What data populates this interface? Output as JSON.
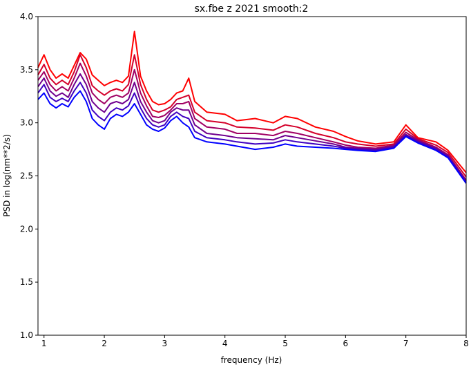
{
  "chart_data": {
    "type": "line",
    "title": "sx.fbe z 2021 smooth:2",
    "xlabel": "frequency (Hz)",
    "ylabel": "PSD in log(nm**2/s)",
    "xlim": [
      0.9,
      8.0
    ],
    "ylim": [
      1.0,
      4.0
    ],
    "xticks": [
      1,
      2,
      3,
      4,
      5,
      6,
      7,
      8
    ],
    "yticks": [
      1.0,
      1.5,
      2.0,
      2.5,
      3.0,
      3.5,
      4.0
    ],
    "xtick_labels": [
      "1",
      "2",
      "3",
      "4",
      "5",
      "6",
      "7",
      "8"
    ],
    "ytick_labels": [
      "1.0",
      "1.5",
      "2.0",
      "2.5",
      "3.0",
      "3.5",
      "4.0"
    ],
    "grid": false,
    "legend": "none",
    "series": [
      {
        "color": "#ff0000",
        "x": [
          0.9,
          1.0,
          1.1,
          1.2,
          1.3,
          1.4,
          1.5,
          1.6,
          1.7,
          1.8,
          1.9,
          2.0,
          2.1,
          2.2,
          2.3,
          2.4,
          2.5,
          2.6,
          2.7,
          2.8,
          2.9,
          3.0,
          3.1,
          3.2,
          3.3,
          3.4,
          3.5,
          3.7,
          4.0,
          4.2,
          4.5,
          4.8,
          5.0,
          5.2,
          5.5,
          5.8,
          6.0,
          6.2,
          6.5,
          6.8,
          7.0,
          7.2,
          7.5,
          7.7,
          8.0
        ],
        "y": [
          3.52,
          3.64,
          3.5,
          3.42,
          3.46,
          3.42,
          3.54,
          3.66,
          3.6,
          3.45,
          3.4,
          3.35,
          3.38,
          3.4,
          3.38,
          3.44,
          3.86,
          3.44,
          3.3,
          3.2,
          3.17,
          3.18,
          3.22,
          3.28,
          3.3,
          3.42,
          3.2,
          3.1,
          3.08,
          3.02,
          3.04,
          3.0,
          3.06,
          3.04,
          2.96,
          2.92,
          2.87,
          2.83,
          2.8,
          2.82,
          2.98,
          2.86,
          2.82,
          2.74,
          2.53
        ]
      },
      {
        "color": "#d4002a",
        "x": [
          0.9,
          1.0,
          1.1,
          1.2,
          1.3,
          1.4,
          1.5,
          1.6,
          1.7,
          1.8,
          1.9,
          2.0,
          2.1,
          2.2,
          2.3,
          2.4,
          2.5,
          2.6,
          2.7,
          2.8,
          2.9,
          3.0,
          3.1,
          3.2,
          3.3,
          3.4,
          3.5,
          3.7,
          4.0,
          4.2,
          4.5,
          4.8,
          5.0,
          5.2,
          5.5,
          5.8,
          6.0,
          6.2,
          6.5,
          6.8,
          7.0,
          7.2,
          7.5,
          7.7,
          8.0
        ],
        "y": [
          3.45,
          3.55,
          3.42,
          3.36,
          3.4,
          3.36,
          3.48,
          3.64,
          3.52,
          3.35,
          3.3,
          3.26,
          3.3,
          3.32,
          3.3,
          3.36,
          3.64,
          3.36,
          3.22,
          3.12,
          3.1,
          3.12,
          3.15,
          3.22,
          3.24,
          3.26,
          3.1,
          3.02,
          3.0,
          2.96,
          2.95,
          2.93,
          2.98,
          2.96,
          2.9,
          2.86,
          2.82,
          2.8,
          2.78,
          2.8,
          2.94,
          2.85,
          2.79,
          2.72,
          2.49
        ]
      },
      {
        "color": "#a00064",
        "x": [
          0.9,
          1.0,
          1.1,
          1.2,
          1.3,
          1.4,
          1.5,
          1.6,
          1.7,
          1.8,
          1.9,
          2.0,
          2.1,
          2.2,
          2.3,
          2.4,
          2.5,
          2.6,
          2.7,
          2.8,
          2.9,
          3.0,
          3.1,
          3.2,
          3.3,
          3.4,
          3.5,
          3.7,
          4.0,
          4.2,
          4.5,
          4.8,
          5.0,
          5.2,
          5.5,
          5.8,
          6.0,
          6.2,
          6.5,
          6.8,
          7.0,
          7.2,
          7.5,
          7.7,
          8.0
        ],
        "y": [
          3.4,
          3.48,
          3.36,
          3.3,
          3.34,
          3.3,
          3.42,
          3.56,
          3.44,
          3.28,
          3.22,
          3.18,
          3.24,
          3.26,
          3.24,
          3.28,
          3.5,
          3.28,
          3.16,
          3.06,
          3.05,
          3.07,
          3.12,
          3.18,
          3.18,
          3.2,
          3.04,
          2.96,
          2.94,
          2.9,
          2.9,
          2.88,
          2.92,
          2.9,
          2.86,
          2.82,
          2.79,
          2.77,
          2.76,
          2.79,
          2.91,
          2.84,
          2.77,
          2.7,
          2.46
        ]
      },
      {
        "color": "#70008f",
        "x": [
          0.9,
          1.0,
          1.1,
          1.2,
          1.3,
          1.4,
          1.5,
          1.6,
          1.7,
          1.8,
          1.9,
          2.0,
          2.1,
          2.2,
          2.3,
          2.4,
          2.5,
          2.6,
          2.7,
          2.8,
          2.9,
          3.0,
          3.1,
          3.2,
          3.3,
          3.4,
          3.5,
          3.7,
          4.0,
          4.2,
          4.5,
          4.8,
          5.0,
          5.2,
          5.5,
          5.8,
          6.0,
          6.2,
          6.5,
          6.8,
          7.0,
          7.2,
          7.5,
          7.7,
          8.0
        ],
        "y": [
          3.34,
          3.42,
          3.3,
          3.25,
          3.28,
          3.24,
          3.36,
          3.46,
          3.36,
          3.2,
          3.14,
          3.1,
          3.18,
          3.2,
          3.18,
          3.22,
          3.38,
          3.2,
          3.1,
          3.02,
          3.0,
          3.02,
          3.1,
          3.14,
          3.12,
          3.12,
          2.98,
          2.9,
          2.88,
          2.86,
          2.85,
          2.84,
          2.88,
          2.86,
          2.83,
          2.8,
          2.77,
          2.76,
          2.75,
          2.78,
          2.89,
          2.83,
          2.76,
          2.69,
          2.45
        ]
      },
      {
        "color": "#4000c0",
        "x": [
          0.9,
          1.0,
          1.1,
          1.2,
          1.3,
          1.4,
          1.5,
          1.6,
          1.7,
          1.8,
          1.9,
          2.0,
          2.1,
          2.2,
          2.3,
          2.4,
          2.5,
          2.6,
          2.7,
          2.8,
          2.9,
          3.0,
          3.1,
          3.2,
          3.3,
          3.4,
          3.5,
          3.7,
          4.0,
          4.2,
          4.5,
          4.8,
          5.0,
          5.2,
          5.5,
          5.8,
          6.0,
          6.2,
          6.5,
          6.8,
          7.0,
          7.2,
          7.5,
          7.7,
          8.0
        ],
        "y": [
          3.28,
          3.36,
          3.24,
          3.2,
          3.23,
          3.2,
          3.3,
          3.38,
          3.28,
          3.12,
          3.06,
          3.02,
          3.1,
          3.14,
          3.12,
          3.16,
          3.28,
          3.14,
          3.04,
          2.98,
          2.96,
          2.98,
          3.06,
          3.1,
          3.06,
          3.04,
          2.92,
          2.86,
          2.84,
          2.82,
          2.8,
          2.81,
          2.84,
          2.82,
          2.8,
          2.78,
          2.76,
          2.75,
          2.74,
          2.77,
          2.88,
          2.82,
          2.75,
          2.68,
          2.44
        ]
      },
      {
        "color": "#0000ff",
        "x": [
          0.9,
          1.0,
          1.1,
          1.2,
          1.3,
          1.4,
          1.5,
          1.6,
          1.7,
          1.8,
          1.9,
          2.0,
          2.1,
          2.2,
          2.3,
          2.4,
          2.5,
          2.6,
          2.7,
          2.8,
          2.9,
          3.0,
          3.1,
          3.2,
          3.3,
          3.4,
          3.5,
          3.7,
          4.0,
          4.2,
          4.5,
          4.8,
          5.0,
          5.2,
          5.5,
          5.8,
          6.0,
          6.2,
          6.5,
          6.8,
          7.0,
          7.2,
          7.5,
          7.7,
          8.0
        ],
        "y": [
          3.22,
          3.28,
          3.18,
          3.14,
          3.18,
          3.15,
          3.24,
          3.3,
          3.2,
          3.04,
          2.98,
          2.94,
          3.04,
          3.08,
          3.06,
          3.1,
          3.18,
          3.08,
          2.98,
          2.94,
          2.92,
          2.95,
          3.02,
          3.06,
          3.0,
          2.96,
          2.86,
          2.82,
          2.8,
          2.78,
          2.75,
          2.77,
          2.8,
          2.78,
          2.77,
          2.76,
          2.75,
          2.74,
          2.73,
          2.76,
          2.87,
          2.81,
          2.74,
          2.67,
          2.43
        ]
      }
    ]
  }
}
